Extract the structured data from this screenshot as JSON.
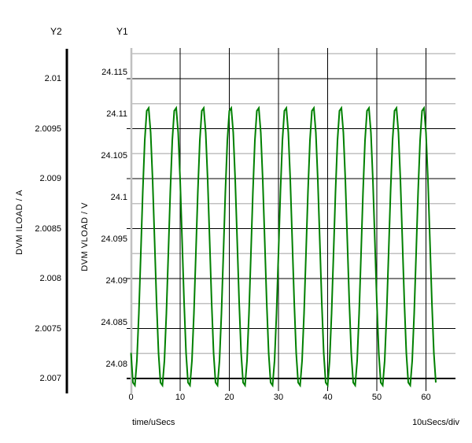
{
  "header": {
    "y2_label": "Y2",
    "y1_label": "Y1"
  },
  "axes": {
    "y2": {
      "title": "DVM ILOAD / A",
      "ticks": [
        "2.01",
        "2.0095",
        "2.009",
        "2.0085",
        "2.008",
        "2.0075",
        "2.007"
      ]
    },
    "y1": {
      "title": "DVM VLOAD / V",
      "ticks": [
        "24.115",
        "24.11",
        "24.105",
        "24.1",
        "24.095",
        "24.09",
        "24.085",
        "24.08"
      ]
    },
    "x": {
      "title": "time/uSecs",
      "ticks": [
        "0",
        "10",
        "20",
        "30",
        "40",
        "50",
        "60"
      ],
      "per_div": "10uSecs/div"
    }
  },
  "chart_data": {
    "type": "line",
    "title": "",
    "grid": true,
    "x_axis": {
      "label": "time/uSecs",
      "unit": "uSecs",
      "tick_values": [
        0,
        10,
        20,
        30,
        40,
        50,
        60
      ],
      "range": [
        0,
        66
      ],
      "major_div": 10,
      "per_div": "10uSecs/div"
    },
    "y1_axis": {
      "label": "DVM VLOAD / V",
      "unit": "V",
      "tick_values": [
        24.115,
        24.11,
        24.105,
        24.1,
        24.095,
        24.09,
        24.085,
        24.08
      ]
    },
    "y2_axis": {
      "label": "DVM ILOAD / A",
      "unit": "A",
      "tick_values": [
        2.01,
        2.0095,
        2.009,
        2.0085,
        2.008,
        2.0075,
        2.007
      ]
    },
    "series": [
      {
        "name": "DVM VLOAD / V",
        "axis": "y1",
        "color": "#008000",
        "shape": "sine_ripple",
        "v_min": 24.0772,
        "v_max": 24.111,
        "period_us": 5.6,
        "first_trough_us": 0.64,
        "t_start_us": 0,
        "t_end_us": 62,
        "num_peaks_visible": 11
      }
    ],
    "colors": {
      "trace": "#008000",
      "major_grid": "#000000",
      "minor_grid": "#c0c0c0"
    }
  }
}
